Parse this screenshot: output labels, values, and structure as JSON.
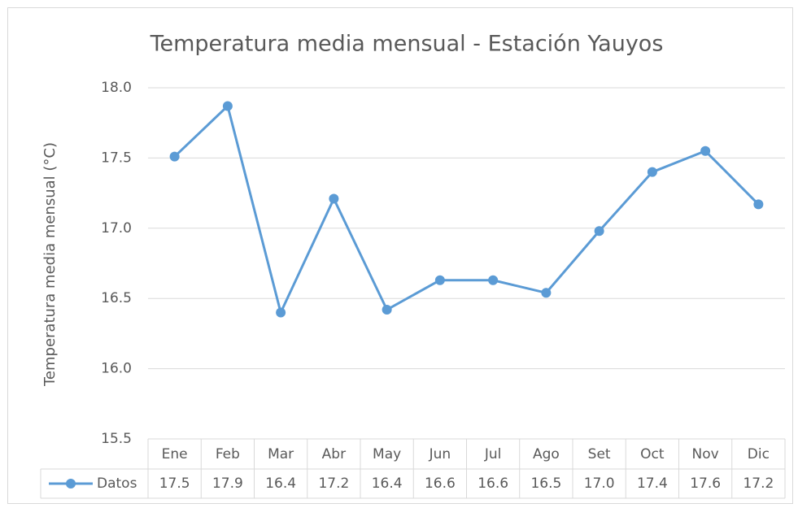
{
  "chart_data": {
    "type": "line",
    "title": "Temperatura media mensual - Estación Yauyos",
    "y_label": "Temperatura media mensual (°C)",
    "categories": [
      "Ene",
      "Feb",
      "Mar",
      "Abr",
      "May",
      "Jun",
      "Jul",
      "Ago",
      "Set",
      "Oct",
      "Nov",
      "Dic"
    ],
    "series": [
      {
        "name": "Datos",
        "color": "#5b9bd5",
        "values": [
          17.51,
          17.87,
          16.4,
          17.21,
          16.42,
          16.63,
          16.63,
          16.54,
          16.98,
          17.4,
          17.55,
          17.17
        ],
        "value_labels": [
          "17.5",
          "17.9",
          "16.4",
          "17.2",
          "16.4",
          "16.6",
          "16.6",
          "16.5",
          "17.0",
          "17.4",
          "17.6",
          "17.2"
        ]
      }
    ],
    "ylim": [
      15.5,
      18.0
    ],
    "yticks": [
      {
        "value": 15.5,
        "label": "15.5"
      },
      {
        "value": 16.0,
        "label": "16.0"
      },
      {
        "value": 16.5,
        "label": "16.5"
      },
      {
        "value": 17.0,
        "label": "17.0"
      },
      {
        "value": 17.5,
        "label": "17.5"
      },
      {
        "value": 18.0,
        "label": "18.0"
      }
    ],
    "grid": true,
    "data_table": true
  }
}
